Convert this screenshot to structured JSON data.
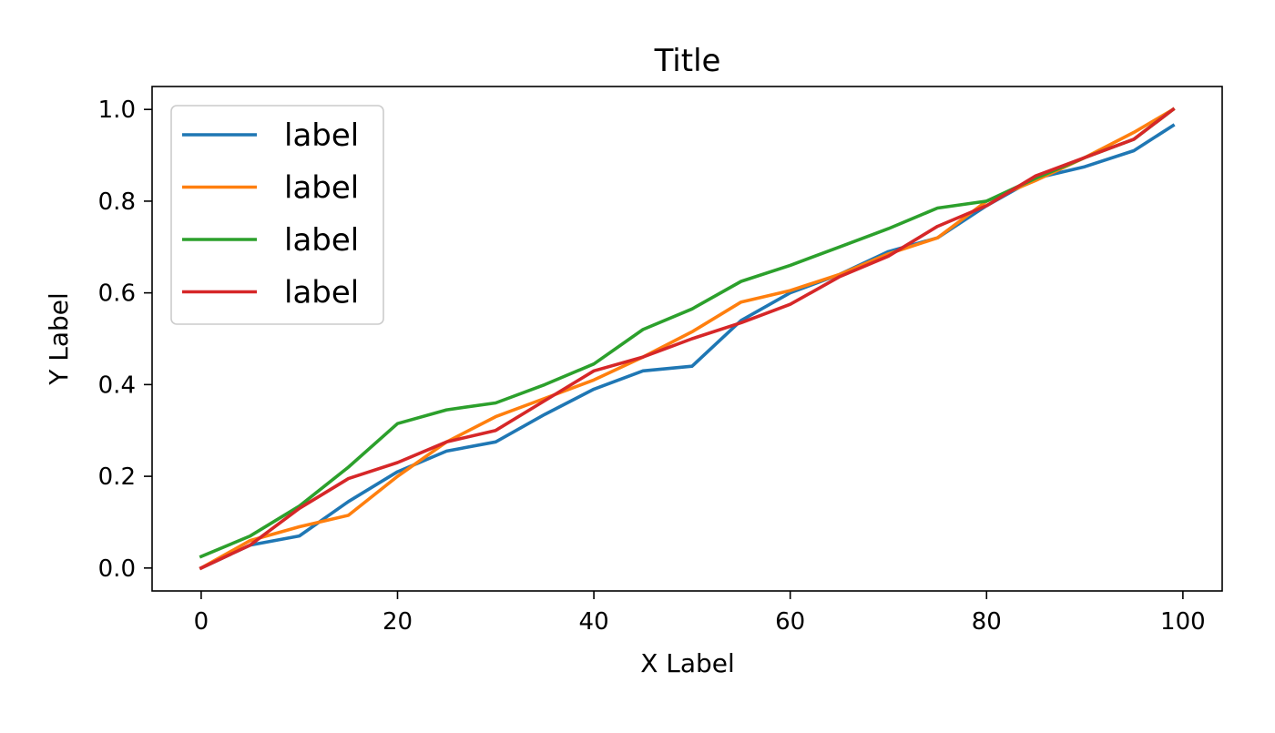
{
  "chart_data": {
    "type": "line",
    "title": "Title",
    "xlabel": "X Label",
    "ylabel": "Y Label",
    "xlim": [
      -5,
      104
    ],
    "ylim": [
      -0.05,
      1.05
    ],
    "x_ticks": [
      0,
      20,
      40,
      60,
      80,
      100
    ],
    "x_tick_labels": [
      "0",
      "20",
      "40",
      "60",
      "80",
      "100"
    ],
    "y_ticks": [
      0.0,
      0.2,
      0.4,
      0.6,
      0.8,
      1.0
    ],
    "y_tick_labels": [
      "0.0",
      "0.2",
      "0.4",
      "0.6",
      "0.8",
      "1.0"
    ],
    "grid": false,
    "legend_position": "upper-left",
    "x": [
      0,
      5,
      10,
      15,
      20,
      25,
      30,
      35,
      40,
      45,
      50,
      55,
      60,
      65,
      70,
      75,
      80,
      85,
      90,
      95,
      99
    ],
    "series": [
      {
        "name": "label",
        "color": "#1f77b4",
        "values": [
          0.0,
          0.05,
          0.07,
          0.145,
          0.21,
          0.255,
          0.275,
          0.335,
          0.39,
          0.43,
          0.44,
          0.54,
          0.6,
          0.64,
          0.69,
          0.72,
          0.79,
          0.85,
          0.875,
          0.91,
          0.965
        ]
      },
      {
        "name": "label",
        "color": "#ff7f0e",
        "values": [
          0.0,
          0.06,
          0.09,
          0.115,
          0.2,
          0.275,
          0.33,
          0.37,
          0.41,
          0.46,
          0.515,
          0.58,
          0.605,
          0.64,
          0.685,
          0.72,
          0.8,
          0.845,
          0.895,
          0.95,
          1.0
        ]
      },
      {
        "name": "label",
        "color": "#2ca02c",
        "values": [
          0.025,
          0.07,
          0.135,
          0.22,
          0.315,
          0.345,
          0.36,
          0.4,
          0.445,
          0.52,
          0.565,
          0.625,
          0.66,
          0.7,
          0.74,
          0.785,
          0.8,
          0.85,
          0.895,
          0.935,
          1.0
        ]
      },
      {
        "name": "label",
        "color": "#d62728",
        "values": [
          0.0,
          0.05,
          0.13,
          0.195,
          0.23,
          0.275,
          0.3,
          0.365,
          0.43,
          0.46,
          0.5,
          0.535,
          0.575,
          0.635,
          0.68,
          0.745,
          0.79,
          0.855,
          0.895,
          0.935,
          1.0
        ]
      }
    ]
  }
}
